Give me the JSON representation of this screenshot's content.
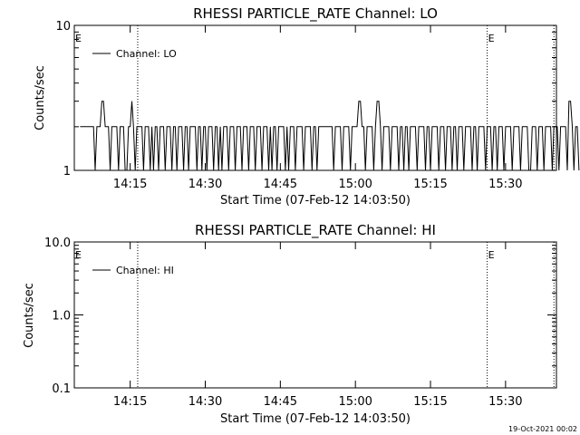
{
  "footer": {
    "timestamp": "19-Oct-2021 00:02"
  },
  "chart_data": [
    {
      "type": "line",
      "title": "RHESSI PARTICLE_RATE Channel: LO",
      "xlabel": "Start Time (07-Feb-12 14:03:50)",
      "ylabel": "Counts/sec",
      "y_scale": "log",
      "ylim": [
        1,
        10
      ],
      "y_ticks": [
        1,
        10
      ],
      "y_tick_labels": [
        "1",
        "10"
      ],
      "xlim": [
        "14:03:50",
        "15:40:10"
      ],
      "x_ticks": [
        "14:15",
        "14:30",
        "14:45",
        "15:00",
        "15:15",
        "15:30"
      ],
      "legend": {
        "entries": [
          "Channel: LO"
        ],
        "position": "top-left"
      },
      "markers": [
        {
          "time": "14:03:50",
          "label": "E",
          "style": "none"
        },
        {
          "time": "14:16:30",
          "label": "",
          "style": "dotted"
        },
        {
          "time": "15:26:20",
          "label": "E",
          "style": "dotted"
        },
        {
          "time": "15:39:40",
          "label": "",
          "style": "dotted"
        }
      ],
      "series": [
        {
          "name": "Channel: LO",
          "time_start": "14:05:00",
          "time_step_seconds": 20,
          "values": [
            2,
            2,
            2,
            2,
            2,
            2,
            2,
            2,
            2,
            1,
            2,
            2,
            2,
            3,
            3,
            2,
            2,
            2,
            1,
            2,
            2,
            2,
            2,
            1,
            2,
            2,
            2,
            1,
            1,
            2,
            2,
            3,
            2,
            1,
            2,
            2,
            2,
            2,
            1,
            2,
            2,
            2,
            1,
            2,
            1,
            2,
            2,
            1,
            2,
            2,
            2,
            1,
            2,
            2,
            2,
            1,
            2,
            2,
            1,
            2,
            2,
            2,
            1,
            2,
            2,
            1,
            2,
            2,
            2,
            2,
            1,
            2,
            2,
            1,
            2,
            2,
            1,
            2,
            2,
            2,
            1,
            2,
            2,
            1,
            2,
            1,
            2,
            2,
            2,
            1,
            2,
            2,
            2,
            1,
            2,
            2,
            2,
            1,
            2,
            2,
            2,
            1,
            2,
            2,
            2,
            1,
            2,
            2,
            2,
            1,
            2,
            2,
            2,
            1,
            2,
            1,
            2,
            2,
            1,
            2,
            2,
            2,
            2,
            1,
            2,
            1,
            2,
            2,
            2,
            1,
            2,
            2,
            2,
            2,
            1,
            2,
            2,
            2,
            2,
            1,
            2,
            2,
            1,
            2,
            2,
            2,
            2,
            2,
            2,
            2,
            2,
            2,
            1,
            2,
            2,
            2,
            2,
            1,
            2,
            2,
            2,
            2,
            1,
            2,
            2,
            2,
            2,
            3,
            3,
            2,
            2,
            1,
            2,
            2,
            2,
            2,
            1,
            2,
            3,
            3,
            2,
            1,
            2,
            2,
            2,
            2,
            1,
            2,
            2,
            2,
            2,
            1,
            2,
            2,
            1,
            2,
            2,
            1,
            2,
            2,
            2,
            2,
            1,
            2,
            2,
            2,
            2,
            1,
            2,
            2,
            1,
            2,
            2,
            2,
            2,
            1,
            2,
            2,
            2,
            1,
            2,
            2,
            2,
            1,
            2,
            2,
            1,
            2,
            2,
            2,
            1,
            2,
            2,
            2,
            2,
            1,
            2,
            2,
            1,
            2,
            2,
            2,
            2,
            1,
            2,
            2,
            2,
            1,
            2,
            2,
            1,
            2,
            2,
            2,
            1,
            2,
            2,
            2,
            2,
            1,
            2,
            2,
            2,
            2,
            1,
            2,
            2,
            2,
            2,
            1,
            1,
            2,
            2,
            2,
            1,
            2,
            2,
            2,
            1,
            2,
            2,
            2,
            2,
            1,
            2,
            2,
            2,
            1,
            2,
            2,
            2,
            2,
            1,
            3,
            3,
            2,
            1,
            2,
            2,
            1
          ]
        }
      ]
    },
    {
      "type": "line",
      "title": "RHESSI PARTICLE_RATE Channel: HI",
      "xlabel": "Start Time (07-Feb-12 14:03:50)",
      "ylabel": "Counts/sec",
      "y_scale": "log",
      "ylim": [
        0.1,
        10
      ],
      "y_ticks": [
        0.1,
        1,
        10
      ],
      "y_tick_labels": [
        "0.1",
        "1.0",
        "10.0"
      ],
      "xlim": [
        "14:03:50",
        "15:40:10"
      ],
      "x_ticks": [
        "14:15",
        "14:30",
        "14:45",
        "15:00",
        "15:15",
        "15:30"
      ],
      "legend": {
        "entries": [
          "Channel: HI"
        ],
        "position": "top-left"
      },
      "markers": [
        {
          "time": "14:03:50",
          "label": "E",
          "style": "none"
        },
        {
          "time": "14:16:30",
          "label": "",
          "style": "dotted"
        },
        {
          "time": "15:26:20",
          "label": "E",
          "style": "dotted"
        },
        {
          "time": "15:39:40",
          "label": "",
          "style": "dotted"
        }
      ],
      "series": [
        {
          "name": "Channel: HI",
          "values": []
        }
      ]
    }
  ]
}
